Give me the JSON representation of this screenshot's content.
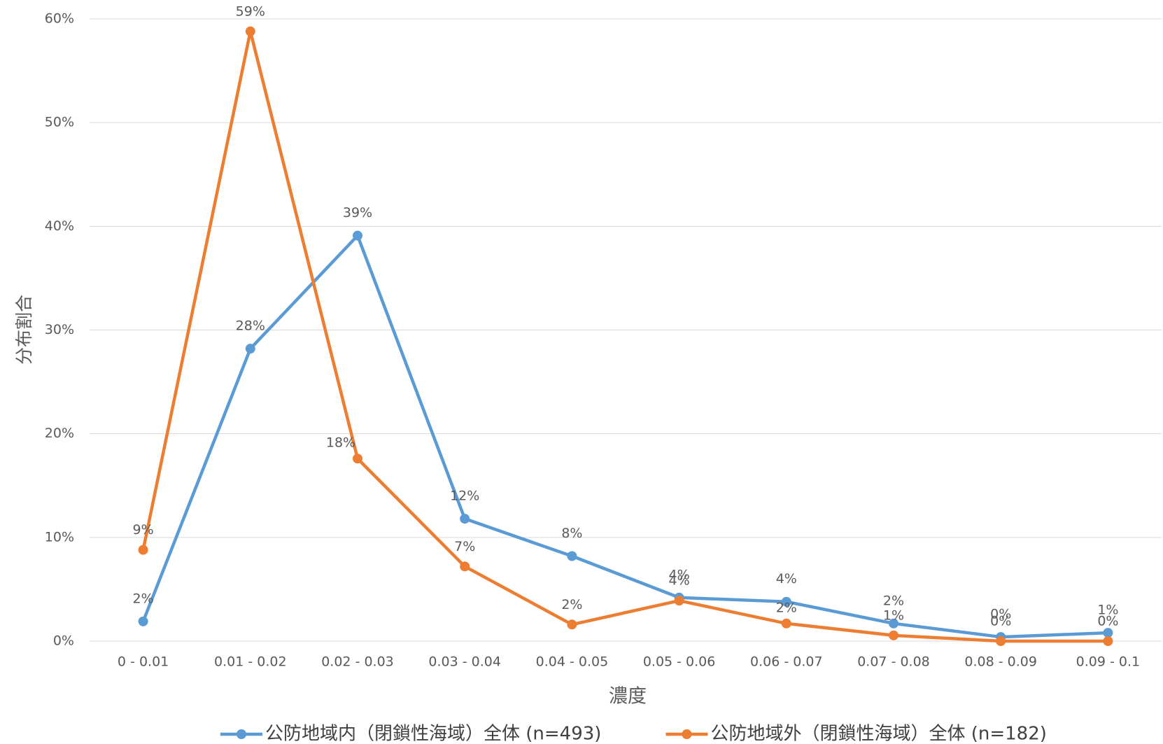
{
  "chart_data": {
    "type": "line",
    "x_label": "濃度",
    "y_label": "分布割合",
    "categories": [
      "0 - 0.01",
      "0.01 - 0.02",
      "0.02 - 0.03",
      "0.03 - 0.04",
      "0.04 - 0.05",
      "0.05 - 0.06",
      "0.06 - 0.07",
      "0.07 - 0.08",
      "0.08 - 0.09",
      "0.09 - 0.1"
    ],
    "series": [
      {
        "name": "公防地域内（閉鎖性海域）全体 (n=493)",
        "color": "#5b9bd5",
        "values": [
          1.9,
          28.2,
          39.1,
          11.8,
          8.2,
          4.2,
          3.8,
          1.7,
          0.4,
          0.8
        ],
        "value_labels": [
          "2%",
          "28%",
          "39%",
          "12%",
          "8%",
          "4%",
          "4%",
          "2%",
          "0%",
          "1%"
        ]
      },
      {
        "name": "公防地域外（閉鎖性海域）全体 (n=182)",
        "color": "#ed7d31",
        "values": [
          8.8,
          58.8,
          17.6,
          7.2,
          1.6,
          3.9,
          1.7,
          0.55,
          0,
          0
        ],
        "value_labels": [
          "9%",
          "59%",
          "18%",
          "7%",
          "2%",
          "4%",
          "2%",
          "1%",
          "0%",
          "0%"
        ]
      }
    ],
    "ylim": [
      0,
      60
    ],
    "yticks": [
      {
        "value": 0,
        "label": "0%"
      },
      {
        "value": 10,
        "label": "10%"
      },
      {
        "value": 20,
        "label": "20%"
      },
      {
        "value": 30,
        "label": "30%"
      },
      {
        "value": 40,
        "label": "40%"
      },
      {
        "value": 50,
        "label": "50%"
      },
      {
        "value": 60,
        "label": "60%"
      }
    ],
    "grid": true
  }
}
